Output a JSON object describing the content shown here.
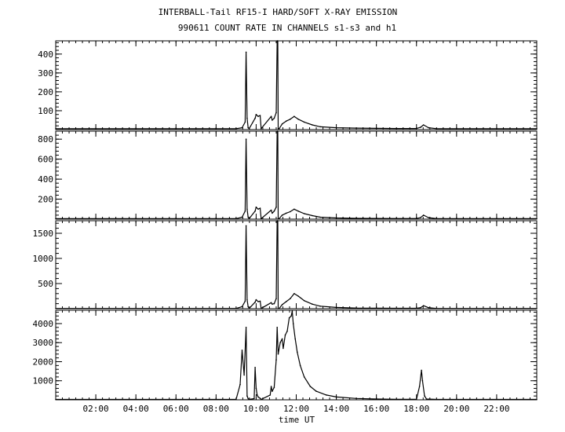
{
  "title": "INTERBALL-Tail RF15-I HARD/SOFT X-RAY EMISSION",
  "subtitle": "990611  COUNT RATE IN CHANNELS s1-s3 and h1",
  "chart_data": {
    "type": "line",
    "title": "INTERBALL-Tail RF15-I HARD/SOFT X-RAY EMISSION",
    "subtitle": "990611  COUNT RATE IN CHANNELS s1-s3 and h1",
    "xlabel": "time UT",
    "xlim": [
      0,
      24
    ],
    "x_ticks": [
      2,
      4,
      6,
      8,
      10,
      12,
      14,
      16,
      18,
      20,
      22
    ],
    "x_tick_labels": [
      "02:00",
      "04:00",
      "06:00",
      "08:00",
      "10:00",
      "12:00",
      "14:00",
      "16:00",
      "18:00",
      "20:00",
      "22:00"
    ],
    "grid": false,
    "panels": [
      {
        "ylim": [
          0,
          470
        ],
        "y_ticks": [
          100,
          200,
          300,
          400
        ],
        "y_tick_labels": [
          "100",
          "200",
          "300",
          "400"
        ],
        "series": [
          {
            "x": [
              0.0,
              2.0,
              4.0,
              6.0,
              8.0,
              9.0,
              9.3,
              9.45,
              9.5,
              9.55,
              9.6,
              9.65,
              9.95,
              10.0,
              10.1,
              10.2,
              10.25,
              10.75,
              10.8,
              10.9,
              11.0,
              11.05,
              11.08,
              11.1,
              11.15,
              11.3,
              11.5,
              11.7,
              11.9,
              12.1,
              12.4,
              12.8,
              13.2,
              14.0,
              15.0,
              17.0,
              18.0,
              18.2,
              18.35,
              18.6,
              19.0,
              21.0,
              24.0
            ],
            "y": [
              5,
              5,
              5,
              5,
              5,
              5,
              10,
              40,
              410,
              60,
              10,
              5,
              60,
              80,
              70,
              75,
              5,
              70,
              50,
              60,
              90,
              470,
              470,
              5,
              5,
              30,
              45,
              55,
              70,
              55,
              40,
              25,
              15,
              10,
              8,
              6,
              6,
              12,
              25,
              10,
              5,
              5,
              5
            ]
          }
        ]
      },
      {
        "ylim": [
          0,
          880
        ],
        "y_ticks": [
          200,
          400,
          600,
          800
        ],
        "y_tick_labels": [
          "200",
          "400",
          "600",
          "800"
        ],
        "series": [
          {
            "x": [
              0.0,
              2.0,
              4.0,
              6.0,
              8.0,
              9.0,
              9.3,
              9.45,
              9.5,
              9.55,
              9.6,
              9.65,
              9.95,
              10.0,
              10.1,
              10.2,
              10.25,
              10.75,
              10.8,
              10.9,
              11.0,
              11.05,
              11.08,
              11.1,
              11.15,
              11.3,
              11.5,
              11.7,
              11.9,
              12.1,
              12.4,
              12.8,
              13.2,
              14.0,
              15.0,
              17.0,
              18.0,
              18.2,
              18.35,
              18.6,
              19.0,
              21.0,
              24.0
            ],
            "y": [
              5,
              5,
              5,
              5,
              5,
              5,
              20,
              80,
              800,
              100,
              20,
              5,
              80,
              120,
              100,
              110,
              5,
              90,
              60,
              80,
              120,
              880,
              880,
              5,
              5,
              40,
              60,
              75,
              100,
              80,
              55,
              35,
              20,
              12,
              8,
              6,
              6,
              15,
              40,
              15,
              5,
              5,
              5
            ]
          }
        ]
      },
      {
        "ylim": [
          0,
          1750
        ],
        "y_ticks": [
          500,
          1000,
          1500
        ],
        "y_tick_labels": [
          "500",
          "1000",
          "1500"
        ],
        "series": [
          {
            "x": [
              0.0,
              2.0,
              4.0,
              6.0,
              8.0,
              9.0,
              9.3,
              9.45,
              9.5,
              9.55,
              9.6,
              9.65,
              9.95,
              10.0,
              10.1,
              10.2,
              10.25,
              10.75,
              10.8,
              10.9,
              11.0,
              11.05,
              11.08,
              11.1,
              11.15,
              11.3,
              11.5,
              11.7,
              11.9,
              12.1,
              12.4,
              12.8,
              13.2,
              14.0,
              15.0,
              17.0,
              18.0,
              18.2,
              18.35,
              18.6,
              19.0,
              21.0,
              24.0
            ],
            "y": [
              5,
              5,
              5,
              5,
              5,
              5,
              40,
              150,
              1650,
              180,
              40,
              5,
              130,
              180,
              140,
              150,
              5,
              120,
              90,
              100,
              200,
              1750,
              1750,
              5,
              5,
              80,
              140,
              200,
              300,
              250,
              160,
              90,
              50,
              25,
              12,
              8,
              8,
              20,
              60,
              20,
              5,
              5,
              5
            ]
          }
        ]
      },
      {
        "ylim": [
          0,
          4700
        ],
        "y_ticks": [
          1000,
          2000,
          3000,
          4000
        ],
        "y_tick_labels": [
          "1000",
          "2000",
          "3000",
          "4000"
        ],
        "series": [
          {
            "x": [
              0.0,
              2.0,
              4.0,
              6.0,
              8.0,
              9.0,
              9.2,
              9.3,
              9.4,
              9.5,
              9.55,
              9.6,
              9.65,
              9.9,
              9.95,
              10.0,
              10.05,
              10.1,
              10.2,
              10.25,
              10.7,
              10.75,
              10.8,
              10.9,
              11.0,
              11.05,
              11.1,
              11.2,
              11.3,
              11.35,
              11.45,
              11.55,
              11.65,
              11.75,
              11.8,
              11.85,
              11.95,
              12.05,
              12.2,
              12.4,
              12.7,
              13.0,
              13.5,
              14.0,
              15.0,
              16.0,
              17.0,
              18.0,
              18.15,
              18.25,
              18.3,
              18.4,
              18.5,
              19.0,
              21.0,
              24.0
            ],
            "y": [
              20,
              20,
              20,
              20,
              20,
              30,
              800,
              2600,
              1300,
              3800,
              200,
              60,
              20,
              60,
              1700,
              600,
              250,
              150,
              80,
              20,
              250,
              700,
              450,
              650,
              2100,
              3800,
              2400,
              3000,
              3200,
              2700,
              3400,
              3600,
              4300,
              4400,
              4650,
              4000,
              3200,
              2500,
              1800,
              1200,
              700,
              450,
              250,
              150,
              70,
              40,
              30,
              30,
              700,
              1550,
              1000,
              200,
              40,
              20,
              20,
              20
            ]
          }
        ]
      }
    ]
  }
}
